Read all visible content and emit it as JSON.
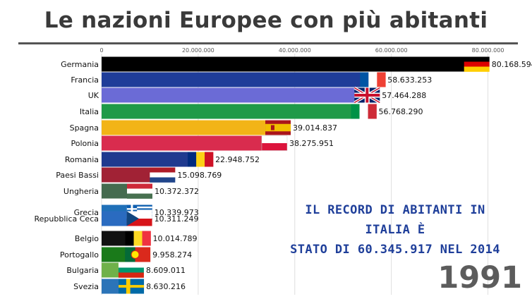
{
  "title": "Le nazioni Europee con più abitanti",
  "note": {
    "line1": "IL RECORD DI ABITANTI IN ITALIA È",
    "line2": "STATO DI 60.345.917 NEL 2014"
  },
  "year": "1991",
  "chart_data": {
    "type": "bar",
    "orientation": "horizontal",
    "xlim": [
      0,
      90000000
    ],
    "xticks": [
      0,
      20000000,
      40000000,
      60000000,
      80000000
    ],
    "xtick_labels": [
      "0",
      "20.000.000",
      "40.000.000",
      "60.000.000",
      "80.000.000"
    ],
    "grid": true,
    "categories": [
      "Germania",
      "Francia",
      "UK",
      "Italia",
      "Spagna",
      "Polonia",
      "Romania",
      "Paesi Bassi",
      "Ungheria",
      "Grecia",
      "Repubblica Ceca",
      "Belgio",
      "Portogallo",
      "Bulgaria",
      "Svezia"
    ],
    "values": [
      80168594,
      58633253,
      57464288,
      56768290,
      39014837,
      38275951,
      22948752,
      15098769,
      10372372,
      10339973,
      10311249,
      10014789,
      9958274,
      8609011,
      8630216
    ],
    "value_labels": [
      "80.168.594",
      "58.633.253",
      "57.464.288",
      "56.768.290",
      "39.014.837",
      "38.275.951",
      "22.948.752",
      "15.098.769",
      "10.372.372",
      "10.339.973",
      "10.311.249",
      "10.014.789",
      "9.958.274",
      "8.609.011",
      "8.630.216"
    ],
    "colors": [
      "#000000",
      "#1f3d99",
      "#6b6bd6",
      "#1f9a48",
      "#f2b417",
      "#d92c4e",
      "#1f3a8f",
      "#a12235",
      "#456b4f",
      "#2070b8",
      "#2a6bc0",
      "#111111",
      "#1a7a1a",
      "#6fb14a",
      "#2b74b8"
    ],
    "flags": [
      "de",
      "fr",
      "uk",
      "it",
      "es",
      "pl",
      "ro",
      "nl",
      "hu",
      "gr",
      "cz",
      "be",
      "pt",
      "bg",
      "se"
    ]
  }
}
